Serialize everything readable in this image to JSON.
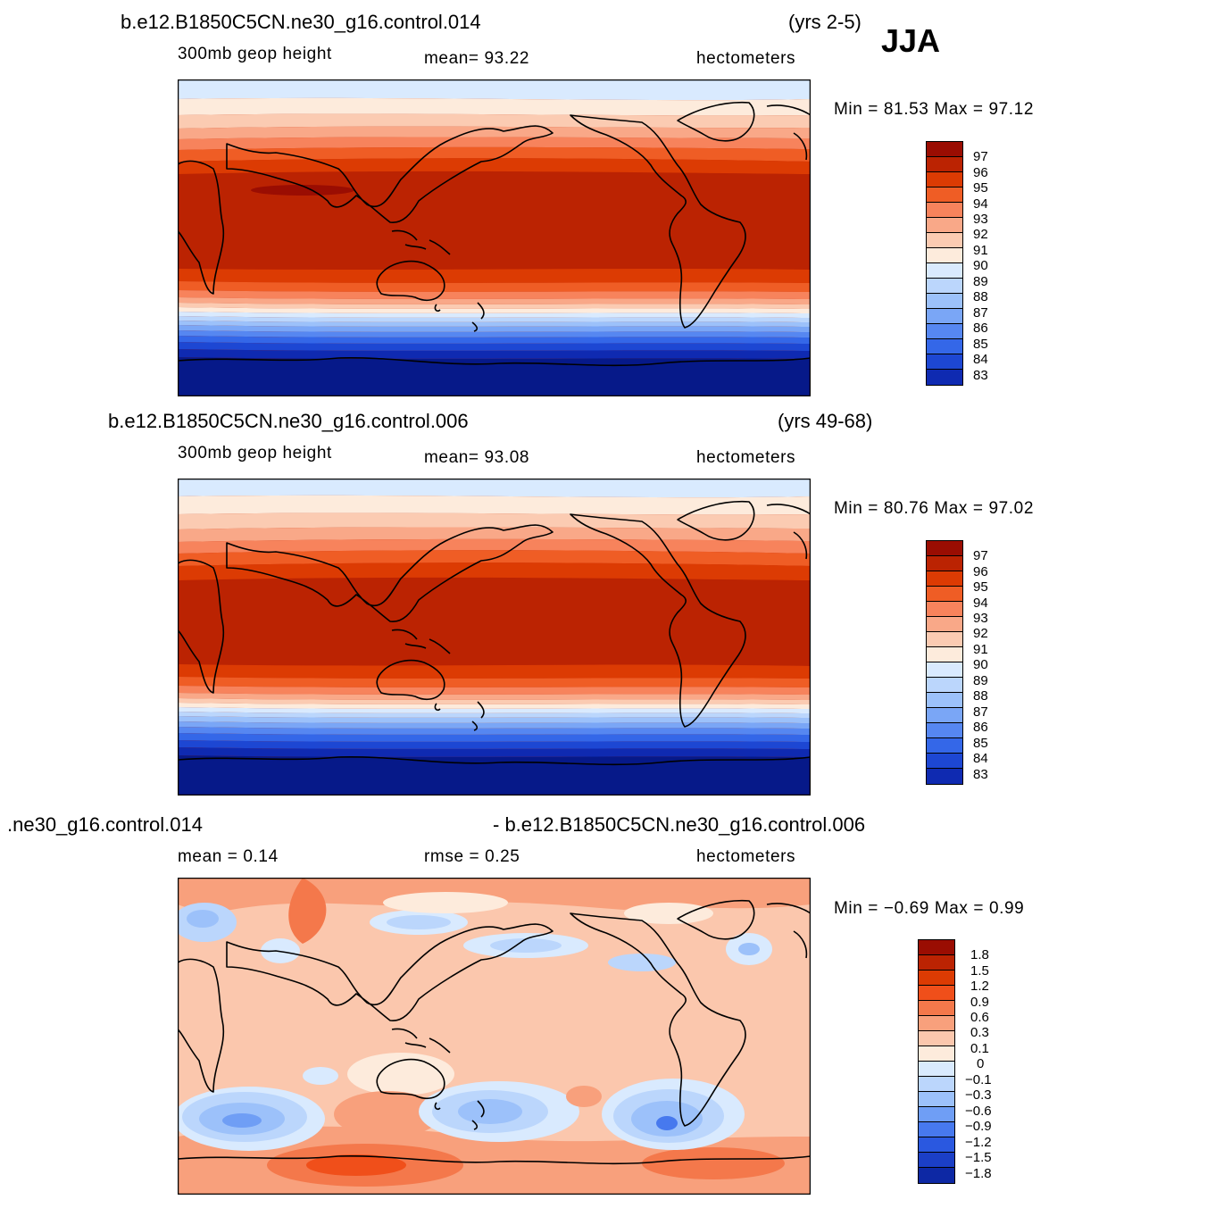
{
  "season": "JJA",
  "panels": [
    {
      "case": "b.e12.B1850C5CN.ne30_g16.control.014",
      "years": "(yrs 2-5)",
      "variable": "300mb geop height",
      "stat_left": "mean=   93.22",
      "stat_right": "",
      "units": "hectometers",
      "minmax": "Min =   81.53  Max =   97.12",
      "colorbar": {
        "labels": [
          "97",
          "96",
          "95",
          "94",
          "93",
          "92",
          "91",
          "90",
          "89",
          "88",
          "87",
          "86",
          "85",
          "84",
          "83"
        ],
        "colors": [
          "#9a0d02",
          "#bb2302",
          "#dc3b03",
          "#ef5d25",
          "#f7835c",
          "#f9a888",
          "#fbcbb2",
          "#fdebdc",
          "#d9eafe",
          "#bbd6fc",
          "#9cc1fa",
          "#7aa6f6",
          "#5687f1",
          "#3467e8",
          "#1d47d3",
          "#0f2ab1",
          "#061989"
        ]
      }
    },
    {
      "case": "b.e12.B1850C5CN.ne30_g16.control.006",
      "years": "(yrs 49-68)",
      "variable": "300mb geop height",
      "stat_left": "mean=   93.08",
      "stat_right": "",
      "units": "hectometers",
      "minmax": "Min =   80.76  Max =   97.02",
      "colorbar": {
        "labels": [
          "97",
          "96",
          "95",
          "94",
          "93",
          "92",
          "91",
          "90",
          "89",
          "88",
          "87",
          "86",
          "85",
          "84",
          "83"
        ],
        "colors": [
          "#9a0d02",
          "#bb2302",
          "#dc3b03",
          "#ef5d25",
          "#f7835c",
          "#f9a888",
          "#fbcbb2",
          "#fdebdc",
          "#d9eafe",
          "#bbd6fc",
          "#9cc1fa",
          "#7aa6f6",
          "#5687f1",
          "#3467e8",
          "#1d47d3",
          "#0f2ab1",
          "#061989"
        ]
      }
    },
    {
      "case": ".ne30_g16.control.014",
      "years": "- b.e12.B1850C5CN.ne30_g16.control.006",
      "variable": "mean =    0.14",
      "stat_left": "rmse =    0.25",
      "stat_right": "",
      "units": "hectometers",
      "minmax": "Min =   −0.69  Max =    0.99",
      "colorbar": {
        "labels": [
          "1.8",
          "1.5",
          "1.2",
          "0.9",
          "0.6",
          "0.3",
          "0.1",
          "0",
          "−0.1",
          "−0.3",
          "−0.6",
          "−0.9",
          "−1.2",
          "−1.5",
          "−1.8"
        ],
        "colors": [
          "#9a0d02",
          "#bb2302",
          "#dc3b03",
          "#f04f1a",
          "#f4784b",
          "#f8a07c",
          "#fbc7ad",
          "#fdebdc",
          "#d9eafe",
          "#bbd6fc",
          "#9cc1fa",
          "#6f9ef5",
          "#4779ee",
          "#2a58e0",
          "#1b3fc6",
          "#0d28a4",
          "#061989"
        ]
      }
    }
  ]
}
